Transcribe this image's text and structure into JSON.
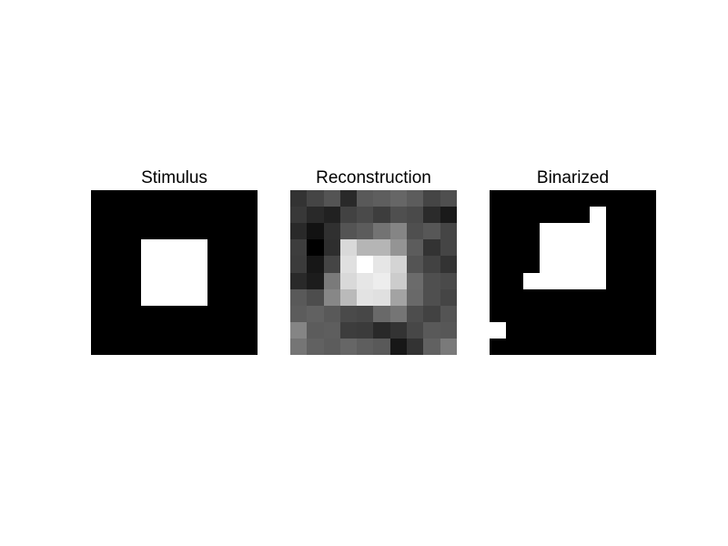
{
  "chart_data": [
    {
      "type": "heatmap",
      "title": "Stimulus",
      "colormap": "gray",
      "vmin": 0,
      "vmax": 1,
      "grid": [
        [
          0,
          0,
          0,
          0,
          0,
          0,
          0,
          0,
          0,
          0
        ],
        [
          0,
          0,
          0,
          0,
          0,
          0,
          0,
          0,
          0,
          0
        ],
        [
          0,
          0,
          0,
          0,
          0,
          0,
          0,
          0,
          0,
          0
        ],
        [
          0,
          0,
          0,
          1,
          1,
          1,
          1,
          0,
          0,
          0
        ],
        [
          0,
          0,
          0,
          1,
          1,
          1,
          1,
          0,
          0,
          0
        ],
        [
          0,
          0,
          0,
          1,
          1,
          1,
          1,
          0,
          0,
          0
        ],
        [
          0,
          0,
          0,
          1,
          1,
          1,
          1,
          0,
          0,
          0
        ],
        [
          0,
          0,
          0,
          0,
          0,
          0,
          0,
          0,
          0,
          0
        ],
        [
          0,
          0,
          0,
          0,
          0,
          0,
          0,
          0,
          0,
          0
        ],
        [
          0,
          0,
          0,
          0,
          0,
          0,
          0,
          0,
          0,
          0
        ]
      ]
    },
    {
      "type": "heatmap",
      "title": "Reconstruction",
      "colormap": "gray",
      "vmin": 0,
      "vmax": 1,
      "grid": [
        [
          0.2,
          0.27,
          0.33,
          0.16,
          0.35,
          0.37,
          0.4,
          0.36,
          0.27,
          0.31
        ],
        [
          0.22,
          0.16,
          0.13,
          0.26,
          0.29,
          0.24,
          0.31,
          0.29,
          0.17,
          0.1
        ],
        [
          0.16,
          0.07,
          0.19,
          0.33,
          0.36,
          0.45,
          0.52,
          0.31,
          0.34,
          0.27
        ],
        [
          0.24,
          0.0,
          0.18,
          0.85,
          0.71,
          0.71,
          0.58,
          0.36,
          0.2,
          0.27
        ],
        [
          0.23,
          0.09,
          0.27,
          0.88,
          1.0,
          0.9,
          0.83,
          0.33,
          0.26,
          0.2
        ],
        [
          0.16,
          0.11,
          0.48,
          0.85,
          0.9,
          0.93,
          0.8,
          0.42,
          0.31,
          0.29
        ],
        [
          0.35,
          0.3,
          0.53,
          0.73,
          0.89,
          0.88,
          0.64,
          0.41,
          0.31,
          0.27
        ],
        [
          0.36,
          0.38,
          0.35,
          0.29,
          0.28,
          0.41,
          0.46,
          0.3,
          0.26,
          0.33
        ],
        [
          0.52,
          0.36,
          0.37,
          0.24,
          0.23,
          0.16,
          0.2,
          0.28,
          0.35,
          0.34
        ],
        [
          0.46,
          0.38,
          0.36,
          0.4,
          0.37,
          0.35,
          0.09,
          0.2,
          0.38,
          0.48
        ]
      ]
    },
    {
      "type": "heatmap",
      "title": "Binarized",
      "colormap": "gray",
      "vmin": 0,
      "vmax": 1,
      "grid": [
        [
          0,
          0,
          0,
          0,
          0,
          0,
          0,
          0,
          0,
          0
        ],
        [
          0,
          0,
          0,
          0,
          0,
          0,
          1,
          0,
          0,
          0
        ],
        [
          0,
          0,
          0,
          1,
          1,
          1,
          1,
          0,
          0,
          0
        ],
        [
          0,
          0,
          0,
          1,
          1,
          1,
          1,
          0,
          0,
          0
        ],
        [
          0,
          0,
          0,
          1,
          1,
          1,
          1,
          0,
          0,
          0
        ],
        [
          0,
          0,
          1,
          1,
          1,
          1,
          1,
          0,
          0,
          0
        ],
        [
          0,
          0,
          0,
          0,
          0,
          0,
          0,
          0,
          0,
          0
        ],
        [
          0,
          0,
          0,
          0,
          0,
          0,
          0,
          0,
          0,
          0
        ],
        [
          1,
          0,
          0,
          0,
          0,
          0,
          0,
          0,
          0,
          0
        ],
        [
          0,
          0,
          0,
          0,
          0,
          0,
          0,
          0,
          0,
          0
        ]
      ]
    }
  ]
}
